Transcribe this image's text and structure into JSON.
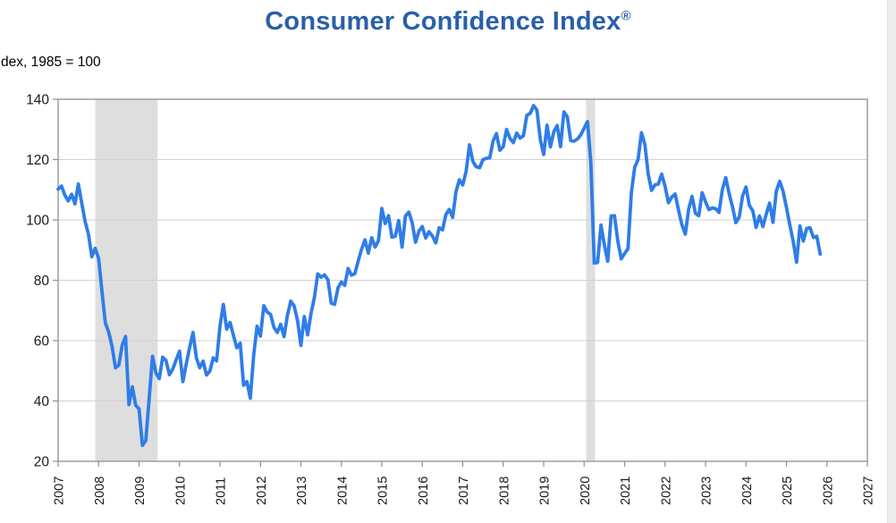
{
  "page": {
    "title_main": "Consumer Confidence Index",
    "title_sup": "®",
    "y_axis_caption": "dex, 1985 = 100"
  },
  "colors": {
    "title": "#2a5fa8",
    "line": "#2f7de8",
    "recession_band": "#dedede",
    "grid": "#d2d2d2",
    "axis": "#8f8f8f",
    "tick_label": "#1a1a1a",
    "right_strip": "#ededed",
    "background": "#ffffff"
  },
  "chart_data": {
    "type": "line",
    "title": "Consumer Confidence Index®",
    "ylabel": "dex, 1985 = 100",
    "xlabel": "",
    "grid": "horizontal-only",
    "legend": "none",
    "ylim": [
      20,
      140
    ],
    "y_ticks": [
      20,
      40,
      60,
      80,
      100,
      120,
      140
    ],
    "x_domain": [
      2007,
      2027
    ],
    "x_tick_labels": [
      "2007",
      "2008",
      "2009",
      "2010",
      "2011",
      "2012",
      "2013",
      "2014",
      "2015",
      "2016",
      "2017",
      "2018",
      "2019",
      "2020",
      "2021",
      "2022",
      "2023",
      "2024",
      "2025",
      "2026",
      "2027"
    ],
    "recession_bands": [
      {
        "start": 2007.917,
        "end": 2009.458
      },
      {
        "start": 2020.05,
        "end": 2020.27
      }
    ],
    "series": [
      {
        "name": "Consumer Confidence Index (monthly)",
        "start_year": 2007,
        "start_month": 1,
        "frequency": "monthly",
        "values": [
          110.2,
          111.2,
          108.2,
          106.3,
          108.5,
          105.3,
          111.9,
          105.6,
          99.5,
          95.2,
          87.8,
          90.6,
          87.3,
          76.4,
          65.9,
          62.8,
          58.1,
          51.0,
          51.9,
          58.5,
          61.4,
          38.8,
          44.7,
          38.6,
          37.4,
          25.3,
          26.9,
          40.8,
          54.8,
          49.3,
          47.4,
          54.5,
          53.4,
          48.7,
          50.6,
          53.6,
          56.5,
          46.4,
          52.3,
          57.7,
          62.7,
          54.3,
          51.0,
          53.2,
          48.6,
          49.9,
          54.3,
          53.3,
          64.8,
          72.0,
          63.8,
          66.0,
          61.7,
          57.6,
          59.2,
          45.2,
          46.4,
          40.9,
          55.2,
          64.8,
          61.5,
          71.6,
          69.5,
          68.7,
          64.4,
          62.7,
          65.4,
          61.3,
          68.4,
          73.1,
          71.5,
          66.7,
          58.4,
          68.0,
          61.9,
          69.0,
          74.3,
          82.1,
          81.0,
          81.8,
          80.2,
          72.4,
          72.0,
          77.5,
          79.4,
          78.3,
          83.9,
          81.7,
          82.2,
          86.4,
          90.3,
          93.4,
          89.0,
          94.1,
          91.0,
          93.1,
          103.8,
          98.8,
          101.4,
          94.3,
          94.6,
          99.8,
          91.0,
          101.3,
          102.6,
          99.1,
          92.6,
          96.3,
          97.8,
          94.0,
          96.1,
          94.7,
          92.4,
          97.4,
          96.7,
          101.8,
          103.5,
          100.8,
          109.4,
          113.3,
          111.6,
          116.1,
          124.9,
          119.4,
          117.6,
          117.3,
          120.0,
          120.4,
          120.6,
          126.2,
          128.6,
          123.1,
          124.3,
          130.0,
          127.0,
          125.6,
          128.8,
          127.1,
          127.9,
          134.7,
          135.3,
          137.9,
          136.4,
          126.6,
          121.7,
          131.4,
          124.2,
          129.2,
          131.3,
          124.3,
          135.8,
          134.2,
          126.3,
          126.1,
          126.8,
          128.2,
          130.4,
          132.6,
          118.8,
          85.7,
          85.9,
          98.3,
          91.7,
          86.3,
          101.3,
          101.4,
          92.9,
          87.1,
          88.9,
          90.4,
          109.0,
          117.5,
          120.0,
          128.9,
          125.1,
          115.2,
          109.8,
          111.6,
          111.9,
          115.2,
          111.1,
          105.7,
          107.6,
          108.6,
          103.2,
          98.4,
          95.3,
          103.6,
          107.8,
          102.2,
          101.4,
          109.0,
          106.0,
          103.4,
          104.0,
          103.7,
          102.5,
          110.1,
          114.0,
          108.7,
          104.3,
          99.1,
          101.0,
          108.0,
          110.9,
          104.8,
          103.1,
          97.5,
          101.3,
          97.8,
          101.9,
          105.6,
          99.2,
          109.6,
          112.8,
          109.5,
          104.1,
          98.3,
          92.9,
          86.0,
          98.0,
          93.0,
          97.2,
          97.4,
          94.2,
          94.6,
          88.7
        ]
      }
    ]
  }
}
